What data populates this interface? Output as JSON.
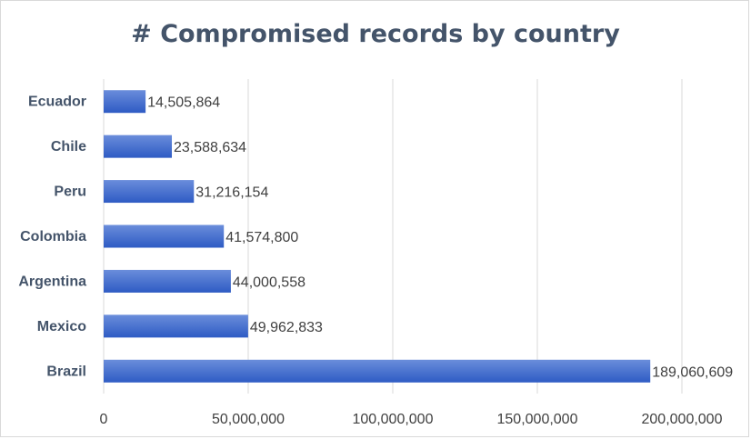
{
  "chart_data": {
    "type": "bar",
    "orientation": "horizontal",
    "title": "# Compromised records by country",
    "categories": [
      "Ecuador",
      "Chile",
      "Peru",
      "Colombia",
      "Argentina",
      "Mexico",
      "Brazil"
    ],
    "values": [
      14505864,
      23588634,
      31216154,
      41574800,
      44000558,
      49962833,
      189060609
    ],
    "value_labels": [
      "14,505,864",
      "23,588,634",
      "31,216,154",
      "41,574,800",
      "44,000,558",
      "49,962,833",
      "189,060,609"
    ],
    "xticks": [
      0,
      50000000,
      100000000,
      150000000,
      200000000
    ],
    "xtick_labels": [
      "0",
      "50,000,000",
      "100,000,000",
      "150,000,000",
      "200,000,000"
    ],
    "xlim": [
      0,
      200000000
    ],
    "grid": "vertical",
    "legend": "none",
    "colors": {
      "bar_top": "#6a8ddb",
      "bar_bottom": "#2e5bc4",
      "grid": "#d9d9d9",
      "title": "#44546a"
    }
  }
}
